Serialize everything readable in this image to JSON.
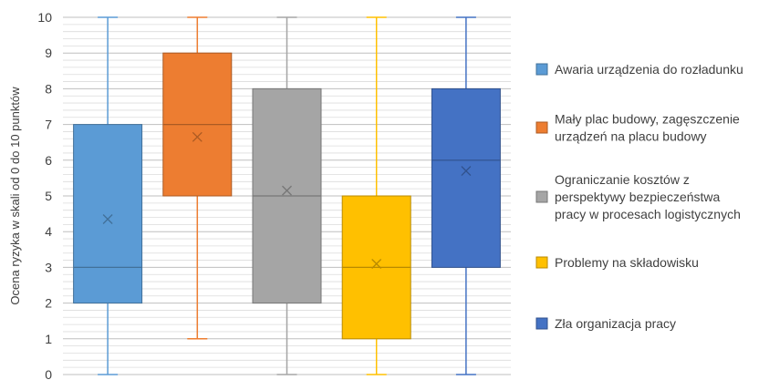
{
  "chart_data": {
    "type": "boxplot",
    "ylabel": "Ocena ryzyka w skali od 0 do 10 punktów",
    "ylim": [
      0,
      10
    ],
    "yticks": [
      0,
      1,
      2,
      3,
      4,
      5,
      6,
      7,
      8,
      9,
      10
    ],
    "grid": "horizontal minor and major",
    "legend_position": "right",
    "series": [
      {
        "name": "Awaria urządzenia do rozładunku",
        "legend_lines": [
          "Awaria urządzenia do rozładunku"
        ],
        "color": "#5B9BD5",
        "min": 0,
        "q1": 2,
        "median": 3,
        "q3": 7,
        "max": 10,
        "mean": 4.35
      },
      {
        "name": "Mały plac budowy, zagęszczenie urządzeń na placu budowy",
        "legend_lines": [
          "Mały plac budowy, zagęszczenie",
          "urządzeń na placu budowy"
        ],
        "color": "#ED7D31",
        "min": 1,
        "q1": 5,
        "median": 7,
        "q3": 9,
        "max": 10,
        "mean": 6.65
      },
      {
        "name": "Ograniczanie kosztów z perspektywy bezpieczeństwa pracy w procesach logistycznych",
        "legend_lines": [
          "Ograniczanie kosztów z",
          "perspektywy bezpieczeństwa",
          "pracy w procesach logistycznych"
        ],
        "color": "#A5A5A5",
        "min": 0,
        "q1": 2,
        "median": 5,
        "q3": 8,
        "max": 10,
        "mean": 5.15
      },
      {
        "name": "Problemy na składowisku",
        "legend_lines": [
          "Problemy na składowisku"
        ],
        "color": "#FFC000",
        "min": 0,
        "q1": 1,
        "median": 3,
        "q3": 5,
        "max": 10,
        "mean": 3.1
      },
      {
        "name": "Zła organizacja pracy",
        "legend_lines": [
          "Zła organizacja pracy"
        ],
        "color": "#4472C4",
        "min": 0,
        "q1": 3,
        "median": 6,
        "q3": 8,
        "max": 10,
        "mean": 5.7
      }
    ]
  }
}
